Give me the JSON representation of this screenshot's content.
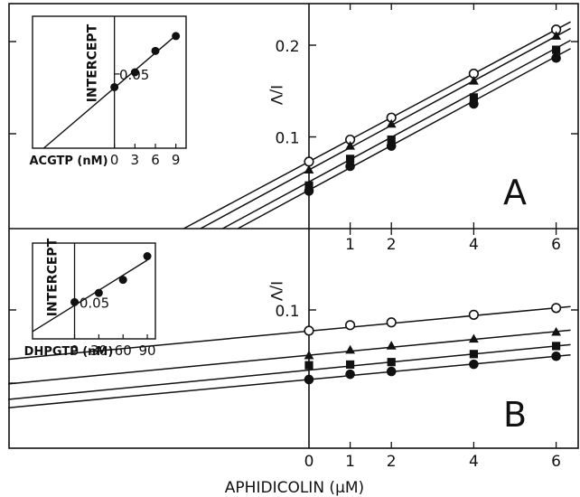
{
  "chart_data": [
    {
      "panel": "A",
      "type": "line",
      "xlabel": "APHIDICOLIN (μM)",
      "ylabel": "I/V",
      "x": [
        0,
        1,
        2,
        4,
        6
      ],
      "xlim": [
        -7.3,
        6.4
      ],
      "ylim": [
        0,
        0.23
      ],
      "y_tick_labels": [
        "0.1",
        "0.2"
      ],
      "x_tick_labels": [
        "1",
        "2",
        "4",
        "6"
      ],
      "series": [
        {
          "marker": "open-circle",
          "values": [
            0.073,
            0.097,
            0.121,
            0.169,
            0.217
          ],
          "line": {
            "slope": 0.024,
            "intercept": 0.073
          }
        },
        {
          "marker": "filled-triangle",
          "values": [
            0.064,
            0.09,
            0.114,
            0.161,
            0.21
          ],
          "line": {
            "slope": 0.0243,
            "intercept": 0.064
          }
        },
        {
          "marker": "filled-square",
          "values": [
            0.047,
            0.076,
            0.097,
            0.143,
            0.195
          ],
          "line": {
            "slope": 0.0243,
            "intercept": 0.051
          }
        },
        {
          "marker": "filled-circle",
          "values": [
            0.041,
            0.068,
            0.09,
            0.136,
            0.186
          ],
          "line": {
            "slope": 0.0243,
            "intercept": 0.042
          }
        }
      ],
      "inset": {
        "type": "line",
        "ylabel": "INTERCEPT",
        "xlabel": "ACGTP (nM)",
        "x_tick_labels": [
          "0",
          "3",
          "6",
          "9"
        ],
        "y_tick_labels": [
          "0.05"
        ],
        "x": [
          0,
          3,
          6,
          9
        ],
        "values": [
          0.042,
          0.051,
          0.064,
          0.073
        ],
        "xlim": [
          -12,
          10.5
        ],
        "ylim": [
          0.005,
          0.085
        ]
      },
      "panel_label": "A"
    },
    {
      "panel": "B",
      "type": "line",
      "xlabel": "APHIDICOLIN (μM)",
      "ylabel": "I/V",
      "x": [
        0,
        1,
        2,
        4,
        6
      ],
      "xlim": [
        -7.3,
        6.4
      ],
      "ylim": [
        0,
        0.12
      ],
      "y_tick_labels": [
        "0.1"
      ],
      "x_tick_labels": [
        "0",
        "1",
        "2",
        "4",
        "6"
      ],
      "series": [
        {
          "marker": "open-circle",
          "values": [
            0.085,
            0.089,
            0.091,
            0.0965,
            0.1014
          ],
          "line": {
            "slope": 0.0028,
            "intercept": 0.0847
          }
        },
        {
          "marker": "filled-triangle",
          "values": [
            0.067,
            0.071,
            0.074,
            0.079,
            0.084
          ],
          "line": {
            "slope": 0.00285,
            "intercept": 0.0673
          }
        },
        {
          "marker": "filled-square",
          "values": [
            0.06,
            0.0605,
            0.0623,
            0.0681,
            0.0739
          ],
          "line": {
            "slope": 0.0029,
            "intercept": 0.0565
          }
        },
        {
          "marker": "filled-circle",
          "values": [
            0.0497,
            0.0535,
            0.0555,
            0.0607,
            0.0665
          ],
          "line": {
            "slope": 0.0028,
            "intercept": 0.0497
          }
        }
      ],
      "inset": {
        "type": "line",
        "ylabel": "INTERCEPT",
        "xlabel": "DHPGTP (nM)",
        "x_tick_labels": [
          "0",
          "30",
          "60",
          "90"
        ],
        "y_tick_labels": [
          "0.05"
        ],
        "x": [
          0,
          30,
          60,
          90
        ],
        "values": [
          0.05,
          0.057,
          0.067,
          0.085
        ],
        "xlim": [
          -52,
          100
        ],
        "ylim": [
          0.022,
          0.095
        ]
      },
      "panel_label": "B"
    }
  ],
  "axis_title": "APHIDICOLIN (μM)"
}
